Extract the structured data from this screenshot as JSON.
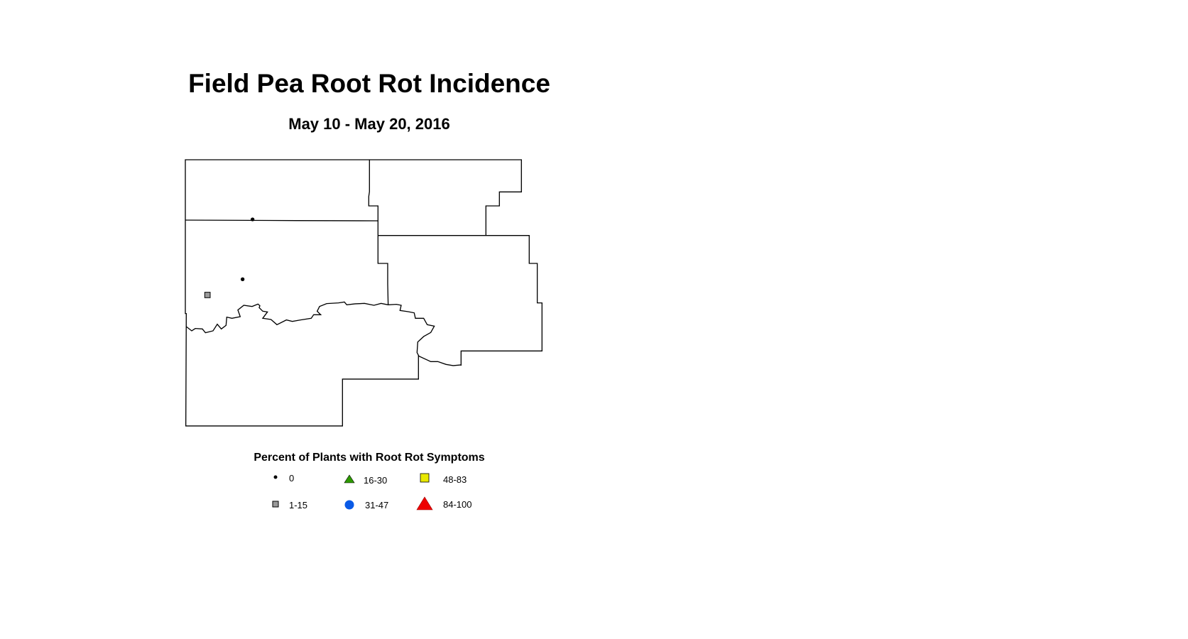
{
  "title": "Field Pea Root Rot Incidence",
  "subtitle": "May 10 - May 20, 2016",
  "legend": {
    "title": "Percent of Plants with Root Rot Symptoms",
    "items": [
      {
        "label": "0",
        "symbol": "small-dot",
        "color": "#000000"
      },
      {
        "label": "1-15",
        "symbol": "square",
        "color": "#9a9a9a"
      },
      {
        "label": "16-30",
        "symbol": "triangle",
        "color": "#2e9a00"
      },
      {
        "label": "31-47",
        "symbol": "circle",
        "color": "#0a5ae6"
      },
      {
        "label": "48-83",
        "symbol": "square",
        "color": "#e8e800"
      },
      {
        "label": "84-100",
        "symbol": "triangle",
        "color": "#ee0000"
      }
    ]
  },
  "observations": [
    {
      "category": "0"
    },
    {
      "category": "0"
    },
    {
      "category": "1-15"
    }
  ]
}
